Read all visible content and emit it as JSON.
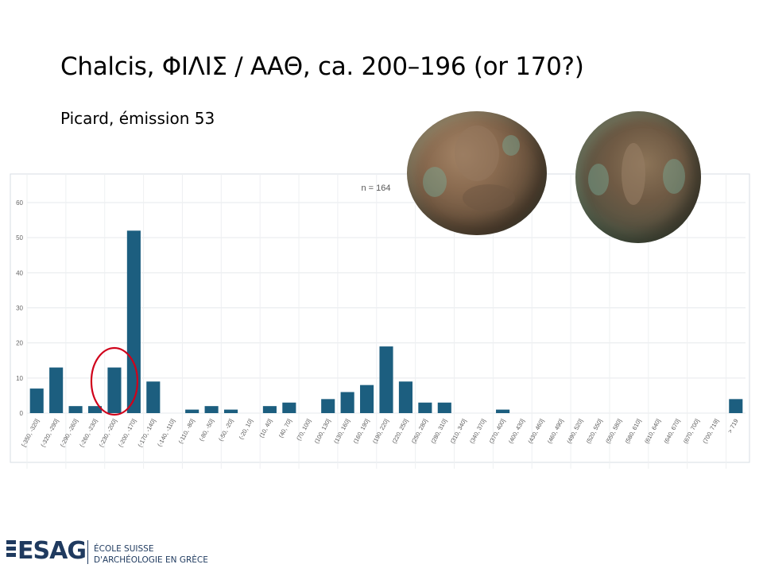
{
  "slide": {
    "title": "Chalcis, ΦΙΛΙΣ / ΑΑΘ, ca. 200–196 (or 170?)",
    "subtitle": "Picard, émission 53"
  },
  "logo": {
    "name": "ESAG",
    "line1": "ÉCOLE SUISSE",
    "line2": "D'ARCHÉOLOGIE EN GRÈCE"
  },
  "images": {
    "coin_obverse": "coin-obverse-photo",
    "coin_reverse": "coin-reverse-photo"
  },
  "chart_data": {
    "type": "bar",
    "title": "n = 164",
    "xlabel": "",
    "ylabel": "",
    "ylim": [
      0,
      60
    ],
    "yticks": [
      0,
      10,
      20,
      30,
      40,
      50,
      60
    ],
    "grid": true,
    "bar_color": "#1c5e7f",
    "categories": [
      "[-350, -320]",
      "(-320, -290]",
      "(-290, -260]",
      "(-260, -230]",
      "(-230, -200]",
      "(-200, -170]",
      "(-170, -140]",
      "(-140, -110]",
      "(-110, -80]",
      "(-80, -50]",
      "(-50, -20]",
      "(-20, 10]",
      "(10, 40]",
      "(40, 70]",
      "(70, 100]",
      "(100, 130]",
      "(130, 160]",
      "(160, 190]",
      "(190, 220]",
      "(220, 250]",
      "(250, 280]",
      "(280, 310]",
      "(310, 340]",
      "(340, 370]",
      "(370, 400]",
      "(400, 430]",
      "(430, 460]",
      "(460, 490]",
      "(490, 520]",
      "(520, 550]",
      "(550, 580]",
      "(580, 610]",
      "(610, 640]",
      "(640, 670]",
      "(670, 700]",
      "(700, 719]",
      "> 719"
    ],
    "values": [
      7,
      13,
      2,
      2,
      13,
      52,
      9,
      0,
      1,
      2,
      1,
      0,
      2,
      3,
      0,
      4,
      6,
      8,
      19,
      9,
      3,
      3,
      0,
      0,
      1,
      0,
      0,
      0,
      0,
      0,
      0,
      0,
      0,
      0,
      0,
      0,
      4
    ],
    "annotations": [
      {
        "type": "circle",
        "category": "(-230, -200]",
        "color": "#d0021b"
      }
    ]
  }
}
